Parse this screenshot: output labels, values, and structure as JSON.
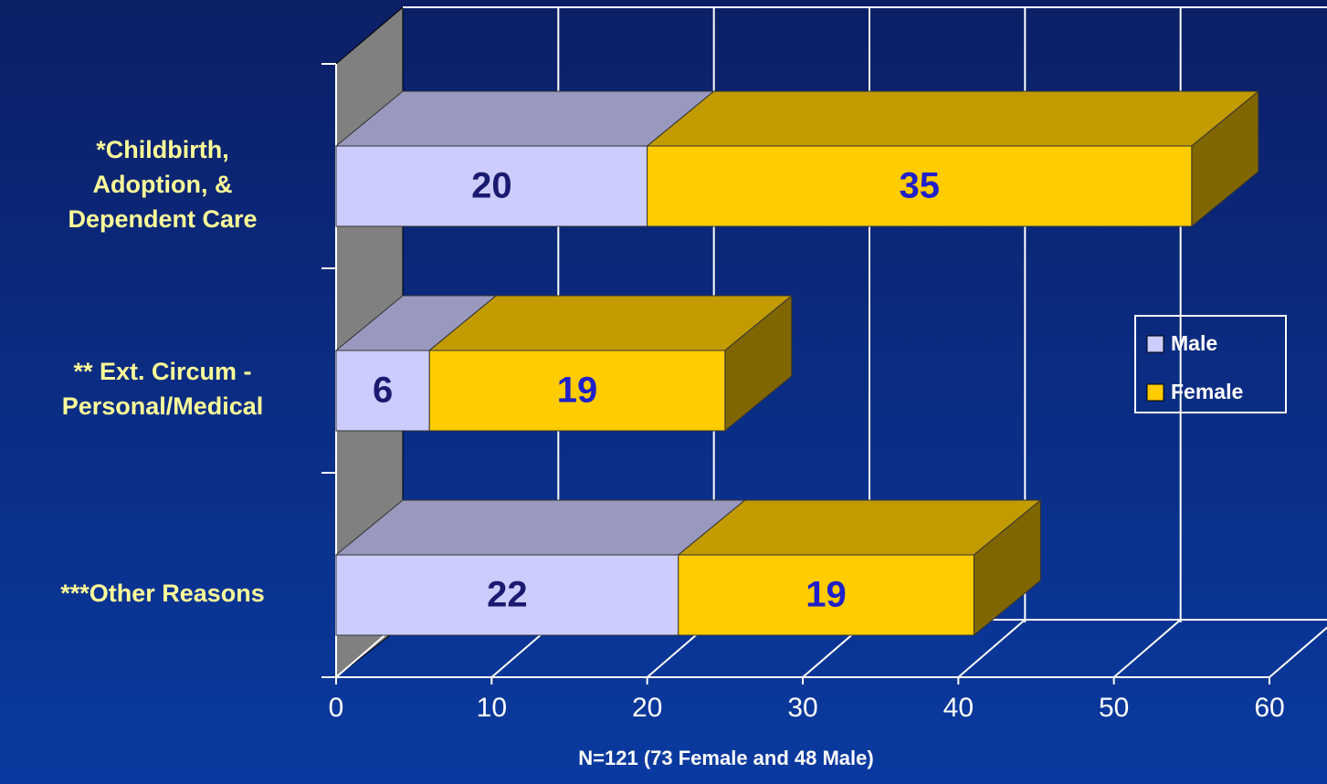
{
  "chart_data": {
    "type": "bar3d_stacked_horizontal",
    "categories": [
      [
        "*Childbirth,",
        "Adoption, &",
        "Dependent Care"
      ],
      [
        "** Ext. Circum -",
        "Personal/Medical"
      ],
      [
        "***Other Reasons"
      ]
    ],
    "series": [
      {
        "name": "Male",
        "color": "#ccccff",
        "values": [
          20,
          6,
          22
        ]
      },
      {
        "name": "Female",
        "color": "#ffcc00",
        "values": [
          35,
          19,
          19
        ]
      }
    ],
    "xlim": [
      0,
      60
    ],
    "xticks": [
      0,
      10,
      20,
      30,
      40,
      50,
      60
    ],
    "xlabel": "N=121 (73 Female and 48 Male)",
    "grid": true,
    "legend": "right"
  }
}
